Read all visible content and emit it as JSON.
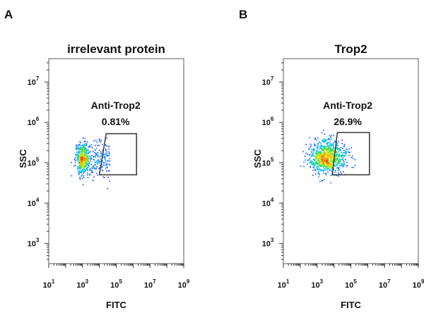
{
  "chart_data": [
    {
      "type": "scatter",
      "panel_label": "A",
      "title": "irrelevant protein",
      "xlabel": "FITC",
      "ylabel": "SSC",
      "x_scale": "log",
      "y_scale": "log",
      "xlim": [
        10,
        1000000000
      ],
      "ylim": [
        316,
        38000000
      ],
      "x_ticks": [
        {
          "base": "10",
          "exp": "1",
          "v": 1
        },
        {
          "base": "10",
          "exp": "3",
          "v": 3
        },
        {
          "base": "10",
          "exp": "5",
          "v": 5
        },
        {
          "base": "10",
          "exp": "7",
          "v": 7
        },
        {
          "base": "10",
          "exp": "9",
          "v": 9
        }
      ],
      "y_ticks": [
        {
          "base": "10",
          "exp": "3",
          "v": 3
        },
        {
          "base": "10",
          "exp": "4",
          "v": 4
        },
        {
          "base": "10",
          "exp": "5",
          "v": 5
        },
        {
          "base": "10",
          "exp": "6",
          "v": 6
        },
        {
          "base": "10",
          "exp": "7",
          "v": 7
        }
      ],
      "gate": {
        "name": "Anti-Trop2",
        "percent": "0.81%",
        "polygon_log10": [
          [
            4.4,
            5.72
          ],
          [
            6.2,
            5.72
          ],
          [
            6.2,
            4.7
          ],
          [
            4.0,
            4.7
          ]
        ]
      },
      "population_log10": {
        "center_x": 3.0,
        "center_y": 5.1,
        "spread_x": 0.22,
        "spread_y": 0.2,
        "tail_to_x": 4.6
      },
      "color_scale": "density (blue-green-yellow-red)",
      "grid": false
    },
    {
      "type": "scatter",
      "panel_label": "B",
      "title": "Trop2",
      "xlabel": "FITC",
      "ylabel": "SSC",
      "x_scale": "log",
      "y_scale": "log",
      "xlim": [
        10,
        1000000000
      ],
      "ylim": [
        316,
        38000000
      ],
      "x_ticks": [
        {
          "base": "10",
          "exp": "1",
          "v": 1
        },
        {
          "base": "10",
          "exp": "3",
          "v": 3
        },
        {
          "base": "10",
          "exp": "5",
          "v": 5
        },
        {
          "base": "10",
          "exp": "7",
          "v": 7
        },
        {
          "base": "10",
          "exp": "9",
          "v": 9
        }
      ],
      "y_ticks": [
        {
          "base": "10",
          "exp": "3",
          "v": 3
        },
        {
          "base": "10",
          "exp": "4",
          "v": 4
        },
        {
          "base": "10",
          "exp": "5",
          "v": 5
        },
        {
          "base": "10",
          "exp": "6",
          "v": 6
        },
        {
          "base": "10",
          "exp": "7",
          "v": 7
        }
      ],
      "gate": {
        "name": "Anti-Trop2",
        "percent": "26.9%",
        "polygon_log10": [
          [
            4.2,
            5.75
          ],
          [
            6.1,
            5.75
          ],
          [
            6.1,
            4.7
          ],
          [
            3.9,
            4.7
          ]
        ]
      },
      "population_log10": {
        "center_x": 3.6,
        "center_y": 5.15,
        "spread_x": 0.55,
        "spread_y": 0.2
      },
      "color_scale": "density (blue-green-yellow-red)",
      "grid": false
    }
  ]
}
